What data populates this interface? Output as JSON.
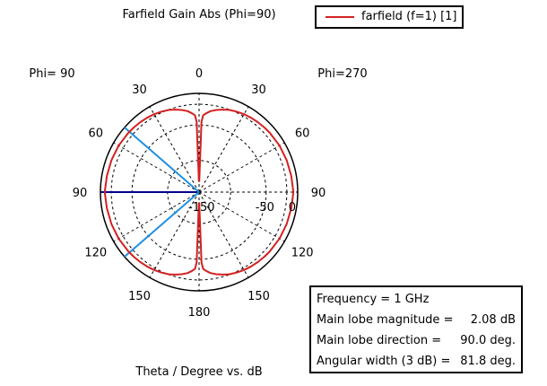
{
  "chart_data": {
    "type": "polar",
    "title": "Farfield Gain Abs (Phi=90)",
    "xlabel": "Theta / Degree vs. dB",
    "left_label": "Phi= 90",
    "right_label": "Phi=270",
    "angle_ticks": [
      "0",
      "30",
      "60",
      "90",
      "120",
      "150",
      "180",
      "150",
      "120",
      "90",
      "60",
      "30"
    ],
    "radial_ticks": [
      "-150",
      "-50",
      "0"
    ],
    "radial_tick_values": [
      -150,
      -50,
      0
    ],
    "series": [
      {
        "name": "farfield (f=1) [1]",
        "color": "#d42020",
        "theta_deg": [
          0,
          1,
          2,
          3,
          5,
          8,
          12,
          16,
          20,
          25,
          30,
          35,
          40,
          45,
          50,
          60,
          70,
          80,
          90,
          100,
          110,
          120,
          130,
          135,
          140,
          145,
          150,
          155,
          160,
          164,
          168,
          172,
          175,
          177,
          178,
          179,
          180
        ],
        "gain_db": [
          -150,
          -150,
          -42,
          -30,
          -26,
          -21,
          -17,
          -13.5,
          -10.5,
          -8,
          -6,
          -4.6,
          -3.4,
          -2.4,
          -1.6,
          -0.5,
          0.2,
          0.8,
          2.08,
          0.8,
          0.2,
          -0.5,
          -1.6,
          -2.4,
          -3.4,
          -4.6,
          -6,
          -8,
          -10.5,
          -13.5,
          -17,
          -21,
          -26,
          -30,
          -42,
          -150,
          -150
        ]
      }
    ],
    "annotations": [
      {
        "name": "main-lobe-direction",
        "color": "#00008b",
        "theta_deg": 90
      },
      {
        "name": "3db-beamwidth-edges",
        "color": "#1e90e0",
        "theta_deg": [
          49.1,
          130.9
        ]
      }
    ]
  },
  "legend": {
    "label": "farfield (f=1) [1]"
  },
  "info": {
    "rows": [
      {
        "label": "Frequency = 1 GHz",
        "value": ""
      },
      {
        "label": "Main lobe magnitude =",
        "value": "2.08 dB"
      },
      {
        "label": "Main lobe direction =",
        "value": "90.0 deg."
      },
      {
        "label": "Angular width (3 dB) =",
        "value": "81.8 deg."
      }
    ]
  }
}
